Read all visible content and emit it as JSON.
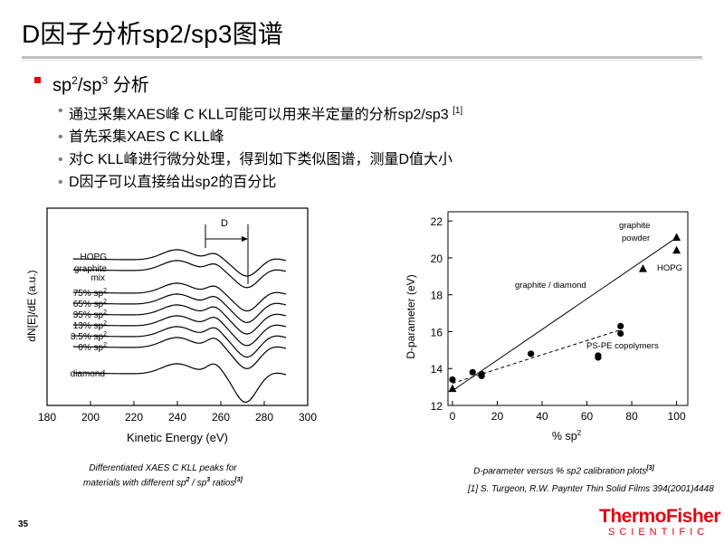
{
  "slide": {
    "title": "D因子分析sp2/sp3图谱",
    "page_number": "35",
    "logo_line1": "ThermoFisher",
    "logo_line2": "SCIENTIFIC",
    "accent_color": "#e30613"
  },
  "bullets": {
    "main_pre": "sp",
    "main_sup1": "2",
    "main_mid": "/sp",
    "main_sup2": "3",
    "main_post": " 分析",
    "items": [
      {
        "text": "通过采集XAES峰 C KLL可能可以用来半定量的分析sp2/sp3 ",
        "sup": "[1]"
      },
      {
        "text": "首先采集XAES C KLL峰"
      },
      {
        "text": "对C KLL峰进行微分处理，得到如下类似图谱，测量D值大小"
      },
      {
        "text": "D因子可以直接给出sp2的百分比"
      }
    ]
  },
  "captions": {
    "left_l1": "Differentiated XAES C KLL peaks for",
    "left_l2_a": "materials with different sp",
    "left_l2_s1": "2",
    "left_l2_b": " / sp",
    "left_l2_s2": "3",
    "left_l2_c": " ratios",
    "left_l2_s3": "[3]",
    "right_a": "D-parameter versus % sp2 calibration plots",
    "right_s": "[3]",
    "reference": "[1] S. Turgeon, R.W. Paynter Thin Solid Films 394(2001)4448"
  },
  "chart_data": [
    {
      "type": "line",
      "xlabel": "Kinetic Energy (eV)",
      "ylabel": "dN[E]/dE   (a.u.)",
      "xlim": [
        180,
        300
      ],
      "xticks": [
        "180",
        "200",
        "220",
        "240",
        "260",
        "280",
        "300"
      ],
      "annotation": "D",
      "series": [
        {
          "name": "HOPG"
        },
        {
          "name": "graphite mix"
        },
        {
          "name": "75% sp2"
        },
        {
          "name": "65% sp2"
        },
        {
          "name": "35% sp2"
        },
        {
          "name": "13% sp2"
        },
        {
          "name": "8.5% sp2"
        },
        {
          "name": "0% sp2"
        },
        {
          "name": "diamond"
        }
      ],
      "legend_text": {
        "hopg": "HOPG",
        "graphite_l1": "graphite",
        "graphite_l2": "mix",
        "p75": "75% sp",
        "p65": "65% sp",
        "p35": "35% sp",
        "p13": "13% sp",
        "p85": "8.5% sp",
        "p0": "0% sp",
        "sup": "2",
        "diamond": "diamond"
      }
    },
    {
      "type": "scatter",
      "xlabel_a": "% sp",
      "xlabel_sup": "2",
      "ylabel": "D-parameter (eV)",
      "xlim": [
        -2,
        105
      ],
      "ylim": [
        12,
        22.5
      ],
      "xticks": [
        "0",
        "20",
        "40",
        "60",
        "80",
        "100"
      ],
      "yticks": [
        "12",
        "14",
        "16",
        "18",
        "20",
        "22"
      ],
      "series": [
        {
          "name": "graphite / diamond",
          "marker": "triangle",
          "points": [
            [
              0,
              12.9
            ],
            [
              85,
              19.4
            ],
            [
              100,
              20.4
            ],
            [
              100,
              21.1
            ]
          ],
          "fit": [
            [
              0,
              12.8
            ],
            [
              100,
              21.1
            ]
          ]
        },
        {
          "name": "PS-PE copolymers",
          "marker": "circle",
          "points": [
            [
              0,
              13.4
            ],
            [
              9,
              13.8
            ],
            [
              13,
              13.7
            ],
            [
              13,
              13.6
            ],
            [
              35,
              14.8
            ],
            [
              65,
              14.7
            ],
            [
              65,
              14.6
            ],
            [
              75,
              15.9
            ],
            [
              75,
              16.3
            ]
          ],
          "fit": [
            [
              0,
              13.2
            ],
            [
              75,
              16.1
            ]
          ]
        }
      ],
      "annotations": {
        "gp_l1": "graphite",
        "gp_l2": "powder",
        "hopg": "HOPG",
        "gd": "graphite / diamond",
        "pspe": "PS-PE copolymers"
      }
    }
  ]
}
